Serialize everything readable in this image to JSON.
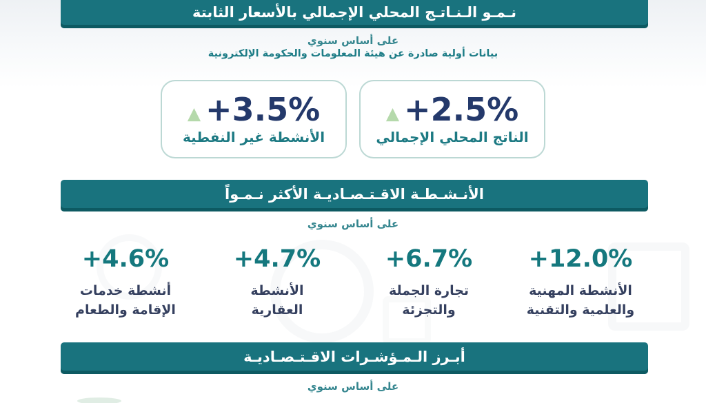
{
  "header": {
    "title": "نـمـو الـنـاتـج المحلي الإجمالي بالأسعار الثابتة",
    "basis": "على أساس سنوي",
    "source_note": "بيانات أولية صادرة عن هيئة المعلومات والحكومة الإلكترونية"
  },
  "summary": {
    "gdp": {
      "value": "+2.5%",
      "label": "الناتج المحلي الإجمالي",
      "trend_icon": "up-triangle",
      "trend_glyph": "▲"
    },
    "non_oil": {
      "value": "+3.5%",
      "label": "الأنشطة غير النفطية",
      "trend_icon": "up-triangle",
      "trend_glyph": "▲"
    }
  },
  "growth_section": {
    "title": "الأنـشـطـة الاقـتـصـاديـة الأكثر نـمـواً",
    "basis": "على أساس سنوي",
    "stats": [
      {
        "value": "+12.0%",
        "label_line1": "الأنشطة المهنية",
        "label_line2": "والعلمية والتقنية"
      },
      {
        "value": "+6.7%",
        "label_line1": "تجارة الجملة",
        "label_line2": "والتجزئة"
      },
      {
        "value": "+4.7%",
        "label_line1": "الأنشطة",
        "label_line2": "العقارية"
      },
      {
        "value": "+4.6%",
        "label_line1": "أنشطة خدمات",
        "label_line2": "الإقامة والطعام"
      }
    ]
  },
  "indicators_section": {
    "title": "أبـرز الـمـؤشـرات الاقـتـصـاديـة",
    "basis": "على أساس سنوي"
  },
  "colors": {
    "bar_teal": "#19737e",
    "bar_bottom_edge": "#0d5a62",
    "value_navy": "#24396b",
    "stat_value_teal": "#15787e",
    "stat_label_navy": "#35405f",
    "card_label_teal": "#1d7a83",
    "subtitle_teal": "#35868f",
    "triangle_green": "#b5d9ab",
    "card_border": "#bcd8d4",
    "top_band": "#eef1f4"
  },
  "chart_data": {
    "type": "table",
    "title": "نمو الناتج المحلي الإجمالي بالأسعار الثابتة",
    "subtitle": "على أساس سنوي",
    "source": "بيانات أولية صادرة عن هيئة المعلومات والحكومة الإلكترونية",
    "series": [
      {
        "name": "الناتج المحلي الإجمالي",
        "growth_pct": 2.5
      },
      {
        "name": "الأنشطة غير النفطية",
        "growth_pct": 3.5
      },
      {
        "name": "الأنشطة المهنية والعلمية والتقنية",
        "growth_pct": 12.0
      },
      {
        "name": "تجارة الجملة والتجزئة",
        "growth_pct": 6.7
      },
      {
        "name": "الأنشطة العقارية",
        "growth_pct": 4.7
      },
      {
        "name": "أنشطة خدمات الإقامة والطعام",
        "growth_pct": 4.6
      }
    ],
    "sections": [
      "نمو الناتج المحلي الإجمالي بالأسعار الثابتة",
      "الأنشطة الاقتصادية الأكثر نمواً",
      "أبرز المؤشرات الاقتصادية"
    ]
  }
}
